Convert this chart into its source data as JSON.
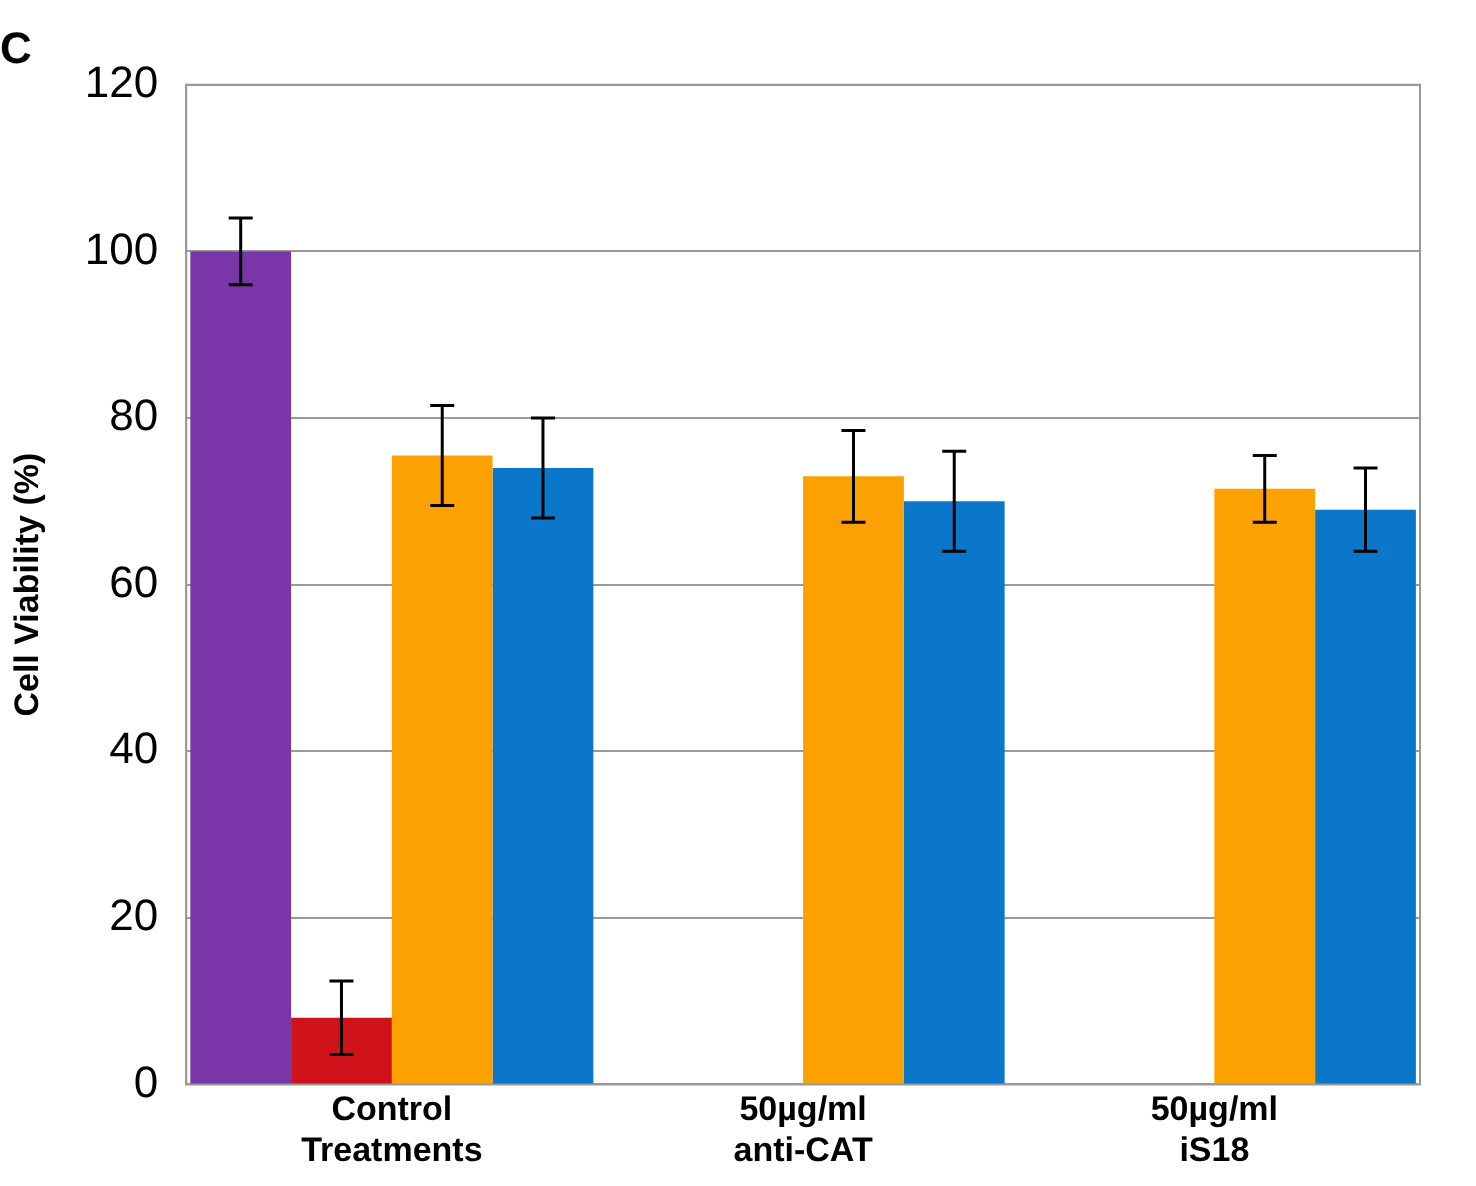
{
  "chart_data": {
    "type": "bar",
    "title": "C",
    "ylabel": "Cell Viability (%)",
    "categories": [
      "Control Treatments",
      "50µg/ml anti-CAT",
      "50µg/ml iS18"
    ],
    "series": [
      {
        "color": "#7a36a8",
        "values": [
          100,
          null,
          null
        ],
        "errors": [
          4,
          null,
          null
        ]
      },
      {
        "color": "#d0121a",
        "values": [
          8,
          null,
          null
        ],
        "errors": [
          4.4,
          null,
          null
        ]
      },
      {
        "color": "#fba202",
        "values": [
          75.5,
          73,
          71.5
        ],
        "errors": [
          6,
          5.5,
          4
        ]
      },
      {
        "color": "#0a77cb",
        "values": [
          74,
          70,
          69
        ],
        "errors": [
          6,
          6,
          5
        ]
      }
    ],
    "ylim": [
      0,
      120
    ],
    "yticks": [
      0,
      20,
      40,
      60,
      80,
      100,
      120
    ],
    "grid": "y",
    "legend": false
  }
}
